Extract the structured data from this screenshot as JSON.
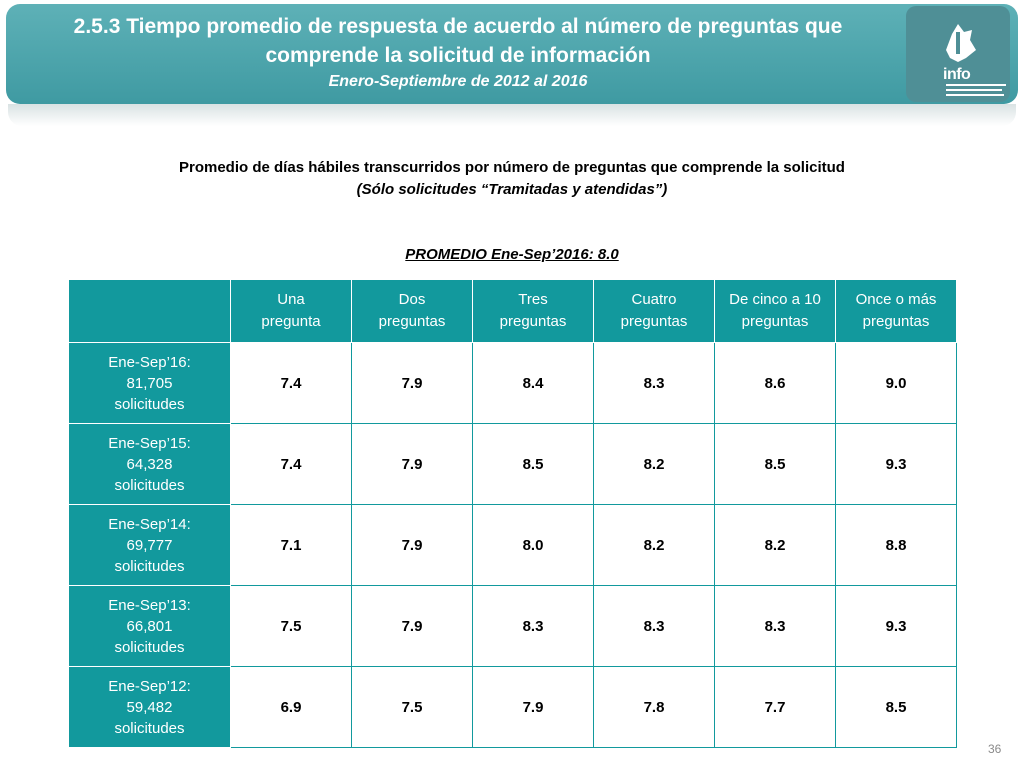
{
  "header": {
    "title": "2.5.3 Tiempo promedio de respuesta de acuerdo al número de preguntas que comprende la solicitud de información",
    "period": "Enero-Septiembre de 2012 al 2016",
    "logo_text": "info",
    "colors": {
      "banner": "#4ea6ad",
      "table_header": "#12999d"
    }
  },
  "subtitle": {
    "line1": "Promedio de días hábiles transcurridos por número de preguntas que comprende la solicitud",
    "line2": "(Sólo solicitudes “Tramitadas y atendidas”)"
  },
  "promedio": "PROMEDIO Ene-Sep’2016: 8.0",
  "table": {
    "columns": [
      {
        "l1": "Una",
        "l2": "pregunta"
      },
      {
        "l1": "Dos",
        "l2": "preguntas"
      },
      {
        "l1": "Tres",
        "l2": "preguntas"
      },
      {
        "l1": "Cuatro",
        "l2": "preguntas"
      },
      {
        "l1": "De cinco a 10",
        "l2": "preguntas"
      },
      {
        "l1": "Once o más",
        "l2": "preguntas"
      }
    ],
    "rows": [
      {
        "period": "Ene-Sep’16:",
        "count": "81,705",
        "unit": "solicitudes",
        "values": [
          "7.4",
          "7.9",
          "8.4",
          "8.3",
          "8.6",
          "9.0"
        ]
      },
      {
        "period": "Ene-Sep’15:",
        "count": "64,328",
        "unit": "solicitudes",
        "values": [
          "7.4",
          "7.9",
          "8.5",
          "8.2",
          "8.5",
          "9.3"
        ]
      },
      {
        "period": "Ene-Sep’14:",
        "count": "69,777",
        "unit": "solicitudes",
        "values": [
          "7.1",
          "7.9",
          "8.0",
          "8.2",
          "8.2",
          "8.8"
        ]
      },
      {
        "period": "Ene-Sep’13:",
        "count": "66,801",
        "unit": "solicitudes",
        "values": [
          "7.5",
          "7.9",
          "8.3",
          "8.3",
          "8.3",
          "9.3"
        ]
      },
      {
        "period": "Ene-Sep’12:",
        "count": "59,482",
        "unit": "solicitudes",
        "values": [
          "6.9",
          "7.5",
          "7.9",
          "7.8",
          "7.7",
          "8.5"
        ]
      }
    ]
  },
  "page_number": "36"
}
